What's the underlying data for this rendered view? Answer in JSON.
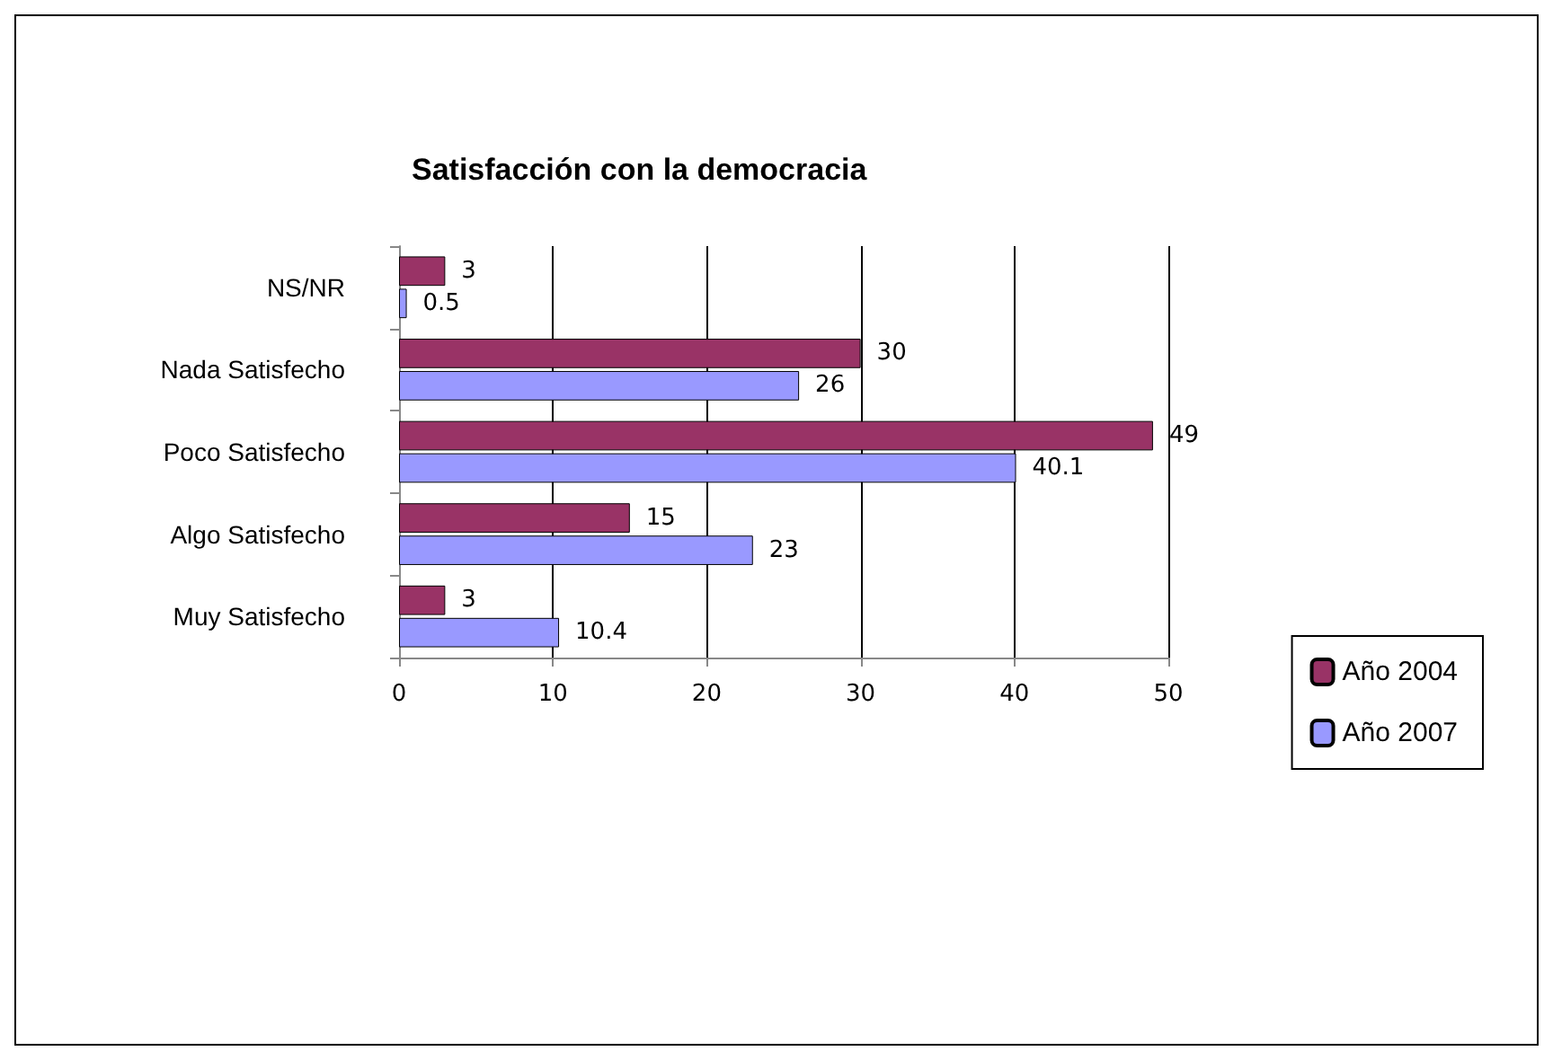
{
  "chart_data": {
    "type": "bar",
    "orientation": "horizontal",
    "title": "Satisfacción con la democracia",
    "categories": [
      "NS/NR",
      "Nada Satisfecho",
      "Poco Satisfecho",
      "Algo Satisfecho",
      "Muy Satisfecho"
    ],
    "series": [
      {
        "name": "Año 2004",
        "color": "#993366",
        "values": [
          3,
          30,
          49,
          15,
          3
        ]
      },
      {
        "name": "Año 2007",
        "color": "#9999ff",
        "values": [
          0.5,
          26,
          40.1,
          23,
          10.4
        ]
      }
    ],
    "xlim": [
      0,
      50
    ],
    "xticks": [
      0,
      10,
      20,
      30,
      40,
      50
    ],
    "grid": "x",
    "legend": "right",
    "data_labels": true
  }
}
